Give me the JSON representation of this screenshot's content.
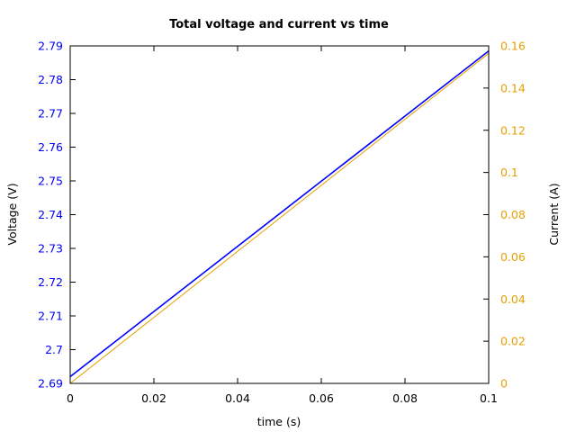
{
  "chart_data": {
    "type": "line",
    "title": "Total voltage and current vs time",
    "xlabel": "time (s)",
    "ylabel": "Voltage (V)",
    "y2label": "Current (A)",
    "xlim": [
      0,
      0.1
    ],
    "ylim": [
      2.69,
      2.79
    ],
    "y2lim": [
      0,
      0.16
    ],
    "xticks": [
      "0",
      "0.02",
      "0.04",
      "0.06",
      "0.08",
      "0.1"
    ],
    "yticks": [
      "2.69",
      "2.7",
      "2.71",
      "2.72",
      "2.73",
      "2.74",
      "2.75",
      "2.76",
      "2.77",
      "2.78",
      "2.79"
    ],
    "y2ticks": [
      "0",
      "0.02",
      "0.04",
      "0.06",
      "0.08",
      "0.1",
      "0.12",
      "0.14",
      "0.16"
    ],
    "grid": false,
    "series": [
      {
        "axis": "left",
        "color": "#0000ff",
        "x": [
          0,
          0.1
        ],
        "y": [
          2.692,
          2.7885
        ]
      },
      {
        "axis": "right",
        "color": "#e69f00",
        "x": [
          0,
          0.1
        ],
        "y": [
          0,
          0.1565
        ]
      }
    ],
    "colors": {
      "left_axis": "#0000ff",
      "right_axis": "#e69f00"
    }
  }
}
